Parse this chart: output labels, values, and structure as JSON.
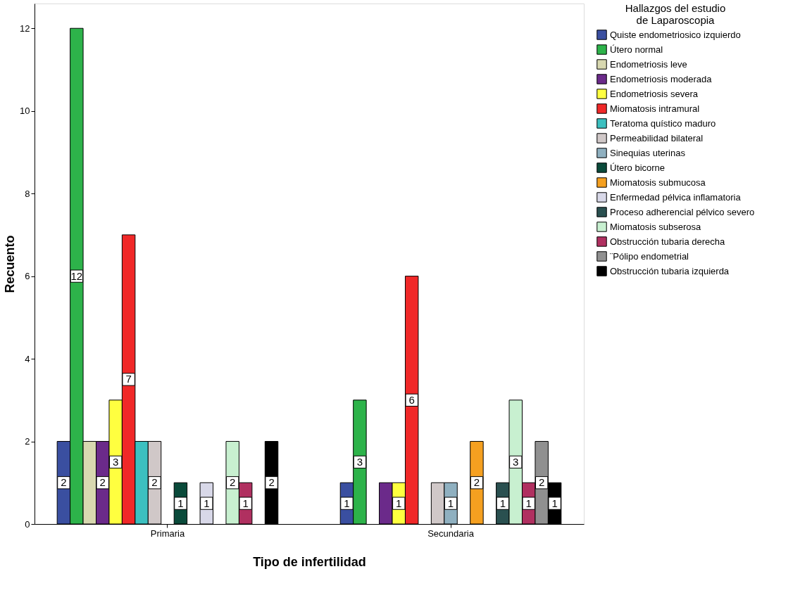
{
  "chart_data": {
    "type": "bar",
    "xlabel": "Tipo de infertilidad",
    "ylabel": "Recuento",
    "legend_title": "Hallazgos del estudio\nde Laparoscopia",
    "legend": "right",
    "grid": false,
    "categories": [
      "Primaria",
      "Secundaria"
    ],
    "ylim": [
      0,
      12.6
    ],
    "yticks": [
      0,
      2,
      4,
      6,
      8,
      10,
      12
    ],
    "series": [
      {
        "name": "Quiste endometriosico izquierdo",
        "color": "#3a4fa0",
        "values": [
          2,
          1
        ],
        "value_labels": [
          "2",
          "1"
        ]
      },
      {
        "name": "Útero normal",
        "color": "#2db34a",
        "values": [
          12,
          3
        ],
        "value_labels": [
          "12",
          "3"
        ]
      },
      {
        "name": "Endometriosis leve",
        "color": "#d8d8b0",
        "values": [
          2,
          null
        ],
        "value_labels": [
          null,
          null
        ]
      },
      {
        "name": "Endometriosis moderada",
        "color": "#6b2a8a",
        "values": [
          2,
          1
        ],
        "value_labels": [
          "2",
          null
        ]
      },
      {
        "name": "Endometriosis severa",
        "color": "#ffff40",
        "values": [
          3,
          1
        ],
        "value_labels": [
          "3",
          "1"
        ]
      },
      {
        "name": "Miomatosis intramural",
        "color": "#f02828",
        "values": [
          7,
          6
        ],
        "value_labels": [
          "7",
          "6"
        ]
      },
      {
        "name": "Teratoma quístico maduro",
        "color": "#3cc0c0",
        "values": [
          2,
          null
        ],
        "value_labels": [
          null,
          null
        ]
      },
      {
        "name": "Permeabilidad bilateral",
        "color": "#d0c8c8",
        "values": [
          2,
          1
        ],
        "value_labels": [
          "2",
          null
        ]
      },
      {
        "name": "Sinequias uterinas",
        "color": "#8fb0c0",
        "values": [
          null,
          1
        ],
        "value_labels": [
          null,
          "1"
        ]
      },
      {
        "name": "Útero bicorne",
        "color": "#0a4a3a",
        "values": [
          1,
          null
        ],
        "value_labels": [
          "1",
          null
        ]
      },
      {
        "name": "Miomatosis submucosa",
        "color": "#f5a020",
        "values": [
          null,
          2
        ],
        "value_labels": [
          null,
          "2"
        ]
      },
      {
        "name": "Enfermedad pélvica inflamatoria",
        "color": "#d8d8e8",
        "values": [
          1,
          null
        ],
        "value_labels": [
          "1",
          null
        ]
      },
      {
        "name": "Proceso adherencial pélvico severo",
        "color": "#2a5050",
        "values": [
          null,
          1
        ],
        "value_labels": [
          null,
          "1"
        ]
      },
      {
        "name": "Miomatosis subserosa",
        "color": "#c8f0d0",
        "values": [
          2,
          3
        ],
        "value_labels": [
          "2",
          "3"
        ]
      },
      {
        "name": "Obstrucción tubaria derecha",
        "color": "#b03060",
        "values": [
          1,
          1
        ],
        "value_labels": [
          "1",
          "1"
        ]
      },
      {
        "name": "¨Pólipo endometrial",
        "color": "#909090",
        "values": [
          null,
          2
        ],
        "value_labels": [
          null,
          "2"
        ]
      },
      {
        "name": "Obstrucción tubaria izquierda",
        "color": "#000000",
        "values": [
          2,
          1
        ],
        "value_labels": [
          "2",
          "1"
        ]
      }
    ]
  }
}
